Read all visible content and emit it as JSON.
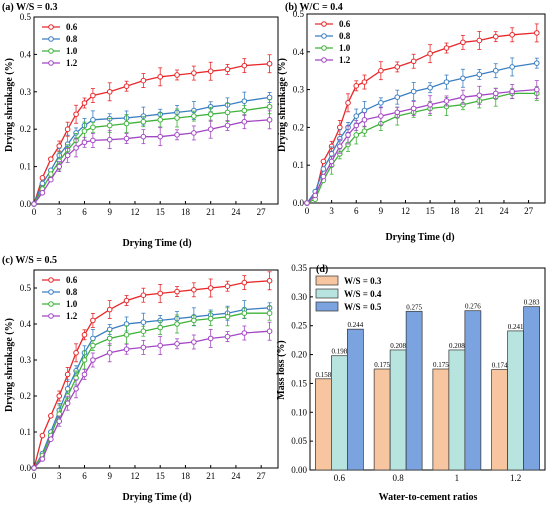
{
  "chart_data": [
    {
      "id": "a",
      "type": "line",
      "title": "(a) W/S = 0.3",
      "xlabel": "Drying Time (d)",
      "ylabel": "Drying shrinkage (%)",
      "xlim": [
        0,
        29
      ],
      "ylim": [
        0,
        0.5
      ],
      "xticks": [
        0,
        3,
        6,
        9,
        12,
        15,
        18,
        21,
        24,
        27
      ],
      "yticks": [
        0.0,
        0.1,
        0.2,
        0.3,
        0.4,
        0.5
      ],
      "legend_position": "top-left",
      "x": [
        0,
        1,
        2,
        3,
        4,
        5,
        6,
        7,
        9,
        11,
        13,
        15,
        17,
        19,
        21,
        23,
        25,
        28
      ],
      "series": [
        {
          "name": "0.6",
          "color": "#e8282b",
          "values": [
            0,
            0.07,
            0.12,
            0.155,
            0.2,
            0.24,
            0.27,
            0.29,
            0.3,
            0.315,
            0.33,
            0.34,
            0.345,
            0.35,
            0.355,
            0.36,
            0.37,
            0.375
          ]
        },
        {
          "name": "0.8",
          "color": "#3c7fc1",
          "values": [
            0,
            0.055,
            0.09,
            0.13,
            0.16,
            0.19,
            0.21,
            0.225,
            0.228,
            0.23,
            0.235,
            0.24,
            0.245,
            0.25,
            0.26,
            0.265,
            0.275,
            0.285
          ]
        },
        {
          "name": "1.0",
          "color": "#3fb23a",
          "values": [
            0,
            0.04,
            0.08,
            0.115,
            0.145,
            0.17,
            0.195,
            0.205,
            0.21,
            0.215,
            0.22,
            0.225,
            0.23,
            0.235,
            0.24,
            0.245,
            0.25,
            0.26
          ]
        },
        {
          "name": "1.2",
          "color": "#a348c4",
          "values": [
            0,
            0.03,
            0.065,
            0.1,
            0.13,
            0.15,
            0.165,
            0.17,
            0.172,
            0.175,
            0.18,
            0.18,
            0.185,
            0.19,
            0.2,
            0.21,
            0.22,
            0.225
          ]
        }
      ]
    },
    {
      "id": "b",
      "type": "line",
      "title": "(b) W/C = 0.4",
      "xlabel": "Drying Time (d)",
      "ylabel": "Drying shrinkage (%)",
      "xlim": [
        0,
        29
      ],
      "ylim": [
        0,
        0.5
      ],
      "xticks": [
        0,
        3,
        6,
        9,
        12,
        15,
        18,
        21,
        24,
        27
      ],
      "yticks": [
        0.0,
        0.1,
        0.2,
        0.3,
        0.4,
        0.5
      ],
      "legend_position": "top-left",
      "x": [
        0,
        1,
        2,
        3,
        4,
        5,
        6,
        7,
        9,
        11,
        13,
        15,
        17,
        19,
        21,
        23,
        25,
        28
      ],
      "series": [
        {
          "name": "0.6",
          "color": "#e8282b",
          "values": [
            0,
            0.02,
            0.11,
            0.15,
            0.2,
            0.265,
            0.31,
            0.32,
            0.35,
            0.36,
            0.375,
            0.395,
            0.41,
            0.425,
            0.43,
            0.44,
            0.445,
            0.45
          ]
        },
        {
          "name": "0.8",
          "color": "#3c7fc1",
          "values": [
            0,
            0.03,
            0.09,
            0.13,
            0.17,
            0.2,
            0.23,
            0.245,
            0.265,
            0.28,
            0.295,
            0.305,
            0.32,
            0.33,
            0.34,
            0.35,
            0.36,
            0.37
          ]
        },
        {
          "name": "1.0",
          "color": "#3fb23a",
          "values": [
            0,
            0.01,
            0.06,
            0.1,
            0.13,
            0.155,
            0.18,
            0.19,
            0.21,
            0.23,
            0.24,
            0.25,
            0.255,
            0.26,
            0.27,
            0.28,
            0.29,
            0.29
          ]
        },
        {
          "name": "1.2",
          "color": "#a348c4",
          "values": [
            0,
            0.02,
            0.07,
            0.11,
            0.15,
            0.18,
            0.205,
            0.22,
            0.23,
            0.24,
            0.25,
            0.26,
            0.27,
            0.28,
            0.285,
            0.29,
            0.295,
            0.3
          ]
        }
      ]
    },
    {
      "id": "c",
      "type": "line",
      "title": "(c) W/S = 0.5",
      "xlabel": "Drying Time (d)",
      "ylabel": "Drying shrinkage (%)",
      "xlim": [
        0,
        29
      ],
      "ylim": [
        0,
        0.55
      ],
      "xticks": [
        0,
        3,
        6,
        9,
        12,
        15,
        18,
        21,
        24,
        27
      ],
      "yticks": [
        0.0,
        0.1,
        0.2,
        0.3,
        0.4,
        0.5
      ],
      "legend_position": "top-left",
      "x": [
        0,
        1,
        2,
        3,
        4,
        5,
        6,
        7,
        9,
        11,
        13,
        15,
        17,
        19,
        21,
        23,
        25,
        28
      ],
      "series": [
        {
          "name": "0.6",
          "color": "#e8282b",
          "values": [
            0,
            0.09,
            0.145,
            0.2,
            0.26,
            0.32,
            0.37,
            0.41,
            0.44,
            0.465,
            0.48,
            0.485,
            0.49,
            0.495,
            0.5,
            0.505,
            0.515,
            0.52
          ]
        },
        {
          "name": "0.8",
          "color": "#3c7fc1",
          "values": [
            0,
            0.04,
            0.1,
            0.16,
            0.22,
            0.27,
            0.32,
            0.36,
            0.385,
            0.4,
            0.405,
            0.41,
            0.415,
            0.42,
            0.425,
            0.43,
            0.44,
            0.445
          ]
        },
        {
          "name": "1.0",
          "color": "#3fb23a",
          "values": [
            0,
            0.035,
            0.09,
            0.15,
            0.2,
            0.25,
            0.3,
            0.34,
            0.36,
            0.37,
            0.38,
            0.39,
            0.4,
            0.41,
            0.415,
            0.42,
            0.43,
            0.43
          ]
        },
        {
          "name": "1.2",
          "color": "#a348c4",
          "values": [
            0,
            0.025,
            0.08,
            0.13,
            0.18,
            0.22,
            0.26,
            0.3,
            0.32,
            0.33,
            0.335,
            0.34,
            0.345,
            0.35,
            0.36,
            0.365,
            0.375,
            0.38
          ]
        }
      ]
    },
    {
      "id": "d",
      "type": "bar",
      "title": "(d)",
      "xlabel": "Water-to-cement ratios",
      "ylabel": "Mass loss (%)",
      "ylim": [
        0,
        0.35
      ],
      "yticks": [
        0.0,
        0.05,
        0.1,
        0.15,
        0.2,
        0.25,
        0.3,
        0.35
      ],
      "legend_position": "top-left",
      "categories": [
        "0.6",
        "0.8",
        "1",
        "1.2"
      ],
      "series": [
        {
          "name": "W/S = 0.3",
          "color": "#f7c59f",
          "values": [
            0.158,
            0.175,
            0.175,
            0.174
          ]
        },
        {
          "name": "W/S = 0.4",
          "color": "#b8e4e0",
          "values": [
            0.198,
            0.208,
            0.208,
            0.241
          ]
        },
        {
          "name": "W/S = 0.5",
          "color": "#7aa3e0",
          "values": [
            0.244,
            0.275,
            0.276,
            0.283
          ]
        }
      ]
    }
  ]
}
